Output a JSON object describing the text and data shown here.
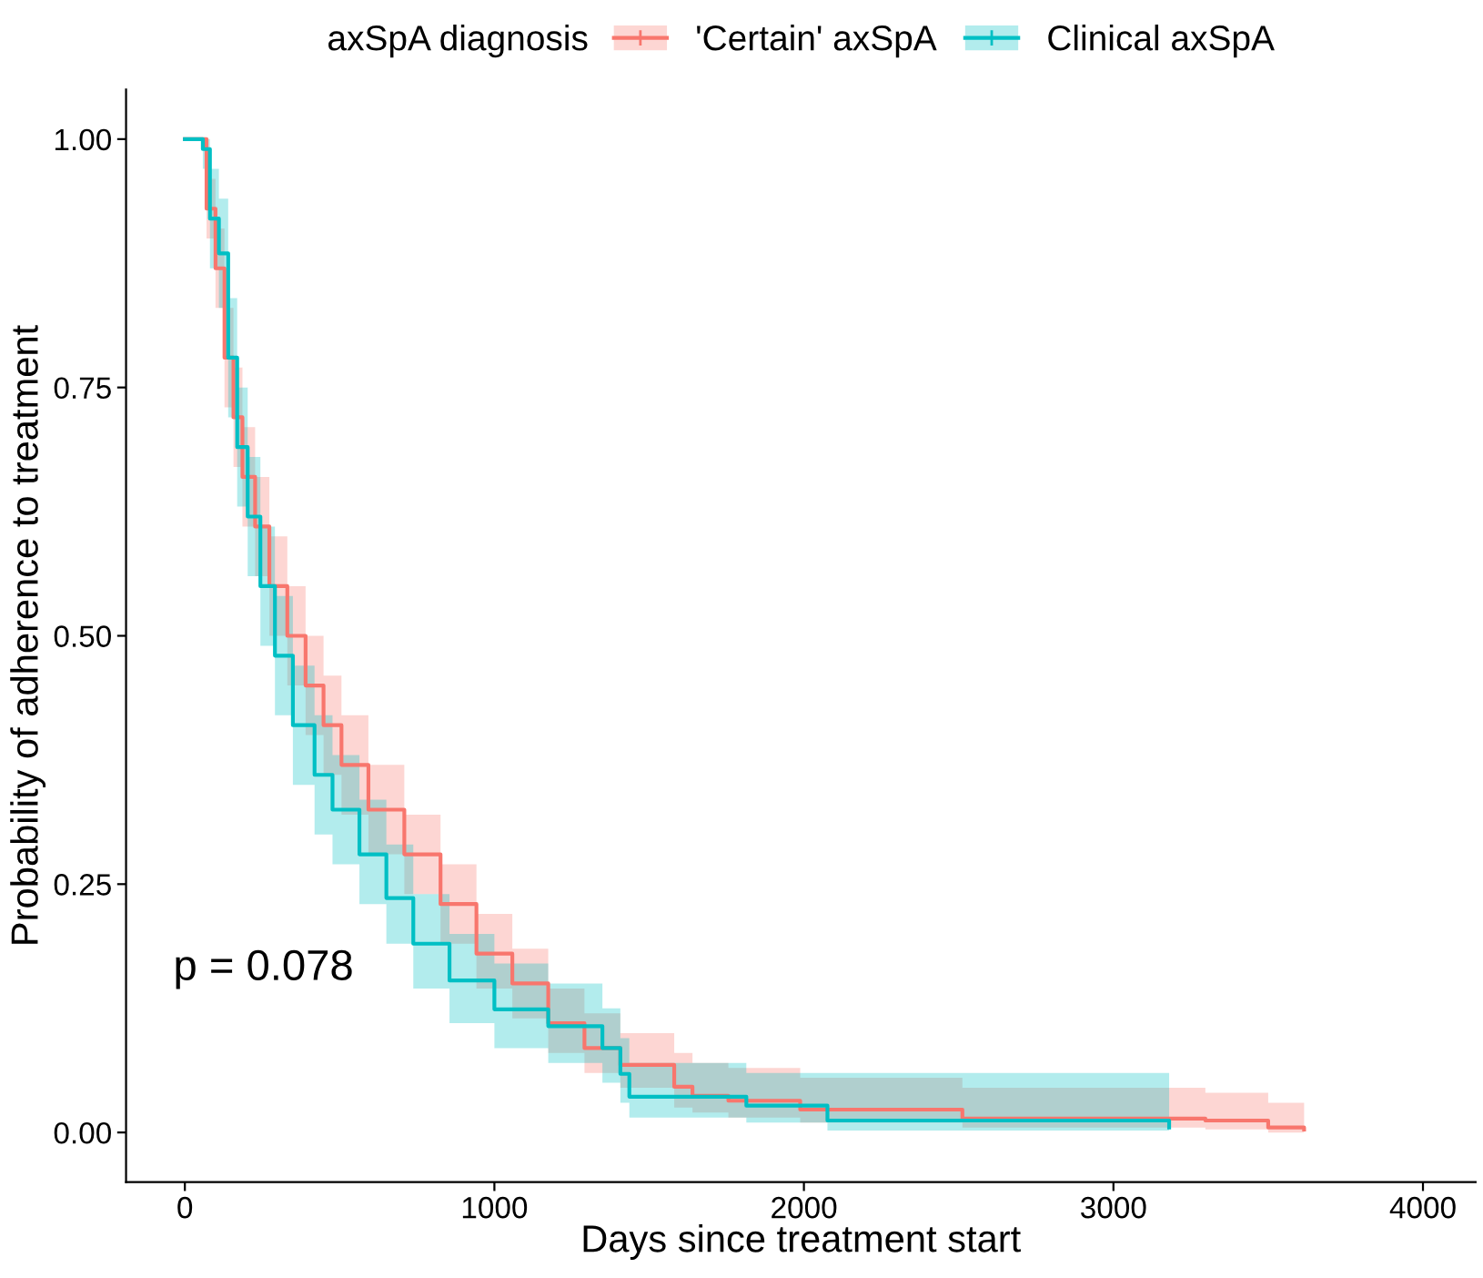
{
  "chart_data": {
    "type": "step",
    "xlabel": "Days since treatment start",
    "ylabel": "Probability of adherence to treatment",
    "legend_title": "axSpA diagnosis",
    "legend": "top",
    "grid": false,
    "xlim": [
      -190,
      4170
    ],
    "xticks": [
      0,
      1000,
      2000,
      3000,
      4000
    ],
    "ylim": [
      -0.05,
      1.05
    ],
    "yticks": [
      {
        "value": 0,
        "label": "0.00"
      },
      {
        "value": 0.25,
        "label": "0.25"
      },
      {
        "value": 0.5,
        "label": "0.50"
      },
      {
        "value": 0.75,
        "label": "0.75"
      },
      {
        "value": 1,
        "label": "1.00"
      }
    ],
    "annotations": [
      "p = 0.078"
    ],
    "series": [
      {
        "name": "'Certain' axSpA",
        "color": "#f8766d",
        "x": [
          0,
          35,
          70,
          99,
          128,
          157,
          186,
          227,
          273,
          331,
          390,
          448,
          506,
          593,
          709,
          826,
          942,
          1058,
          1174,
          1291,
          1407,
          1581,
          1640,
          1756,
          1988,
          2512,
          3297,
          3500,
          3616
        ],
        "values": [
          1,
          1,
          0.93,
          0.87,
          0.78,
          0.72,
          0.66,
          0.61,
          0.55,
          0.5,
          0.45,
          0.41,
          0.37,
          0.325,
          0.28,
          0.23,
          0.18,
          0.15,
          0.11,
          0.085,
          0.068,
          0.046,
          0.037,
          0.032,
          0.023,
          0.014,
          0.012,
          0.005,
          0.003
        ],
        "lower": [
          1,
          1,
          0.9,
          0.83,
          0.73,
          0.67,
          0.61,
          0.56,
          0.5,
          0.45,
          0.4,
          0.36,
          0.32,
          0.28,
          0.24,
          0.19,
          0.145,
          0.115,
          0.08,
          0.06,
          0.045,
          0.025,
          0.02,
          0.015,
          0.01,
          0.005,
          0.003,
          0,
          0
        ],
        "upper": [
          1,
          1,
          0.96,
          0.91,
          0.83,
          0.77,
          0.71,
          0.66,
          0.6,
          0.55,
          0.5,
          0.46,
          0.42,
          0.37,
          0.32,
          0.27,
          0.22,
          0.185,
          0.145,
          0.12,
          0.1,
          0.08,
          0.07,
          0.065,
          0.055,
          0.045,
          0.04,
          0.03,
          0.03
        ]
      },
      {
        "name": "Clinical axSpA",
        "color": "#00bfc4",
        "x": [
          0,
          58,
          81,
          110,
          140,
          169,
          203,
          244,
          291,
          349,
          419,
          477,
          564,
          651,
          738,
          855,
          1000,
          1174,
          1349,
          1407,
          1436,
          1698,
          1814,
          2076,
          3180
        ],
        "values": [
          1,
          0.99,
          0.92,
          0.885,
          0.78,
          0.69,
          0.62,
          0.55,
          0.48,
          0.41,
          0.36,
          0.325,
          0.28,
          0.236,
          0.19,
          0.153,
          0.124,
          0.107,
          0.085,
          0.059,
          0.036,
          0.036,
          0.027,
          0.012,
          0.005
        ],
        "lower": [
          1,
          0.97,
          0.87,
          0.83,
          0.72,
          0.63,
          0.56,
          0.49,
          0.42,
          0.35,
          0.3,
          0.27,
          0.23,
          0.19,
          0.145,
          0.11,
          0.085,
          0.07,
          0.05,
          0.03,
          0.015,
          0.015,
          0.01,
          0.002,
          0
        ],
        "upper": [
          1,
          1,
          0.97,
          0.94,
          0.84,
          0.75,
          0.68,
          0.61,
          0.54,
          0.47,
          0.42,
          0.38,
          0.335,
          0.29,
          0.24,
          0.2,
          0.17,
          0.15,
          0.125,
          0.095,
          0.07,
          0.07,
          0.06,
          0.06,
          0.06
        ]
      }
    ]
  }
}
